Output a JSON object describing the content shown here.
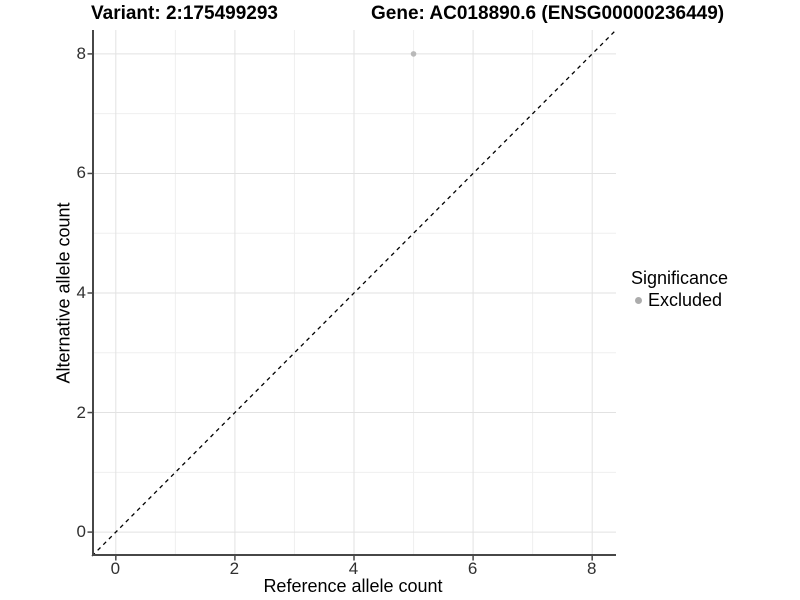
{
  "chart_data": {
    "type": "scatter",
    "title_left": "Variant: 2:175499293",
    "title_right": "Gene: AC018890.6 (ENSG00000236449)",
    "xlabel": "Reference allele count",
    "ylabel": "Alternative allele count",
    "xlim": [
      -0.4,
      8.4
    ],
    "ylim": [
      -0.4,
      8.4
    ],
    "x_ticks": [
      0,
      2,
      4,
      6,
      8
    ],
    "y_ticks": [
      0,
      2,
      4,
      6,
      8
    ],
    "x_minor_ticks": [
      1,
      3,
      5,
      7
    ],
    "y_minor_ticks": [
      1,
      3,
      5,
      7
    ],
    "grid": "major+minor",
    "reference_line": {
      "type": "identity",
      "equation": "y = x",
      "style": "dashed",
      "color": "#000000"
    },
    "series": [
      {
        "name": "Excluded",
        "marker": "circle",
        "color": "#b9b9b9",
        "points": [
          {
            "x": 5,
            "y": 8
          }
        ]
      }
    ],
    "legend": {
      "position": "right",
      "title": "Significance",
      "items": [
        {
          "label": "Excluded",
          "color": "#acacac"
        }
      ]
    }
  },
  "colors": {
    "background": "#ffffff",
    "grid_major": "#e2e2e2",
    "grid_minor": "#efefef",
    "axis_line": "#474747",
    "tick_mark": "#474747",
    "tick_label": "#303030",
    "point": "#b9b9b9",
    "reference_line": "#000000"
  }
}
